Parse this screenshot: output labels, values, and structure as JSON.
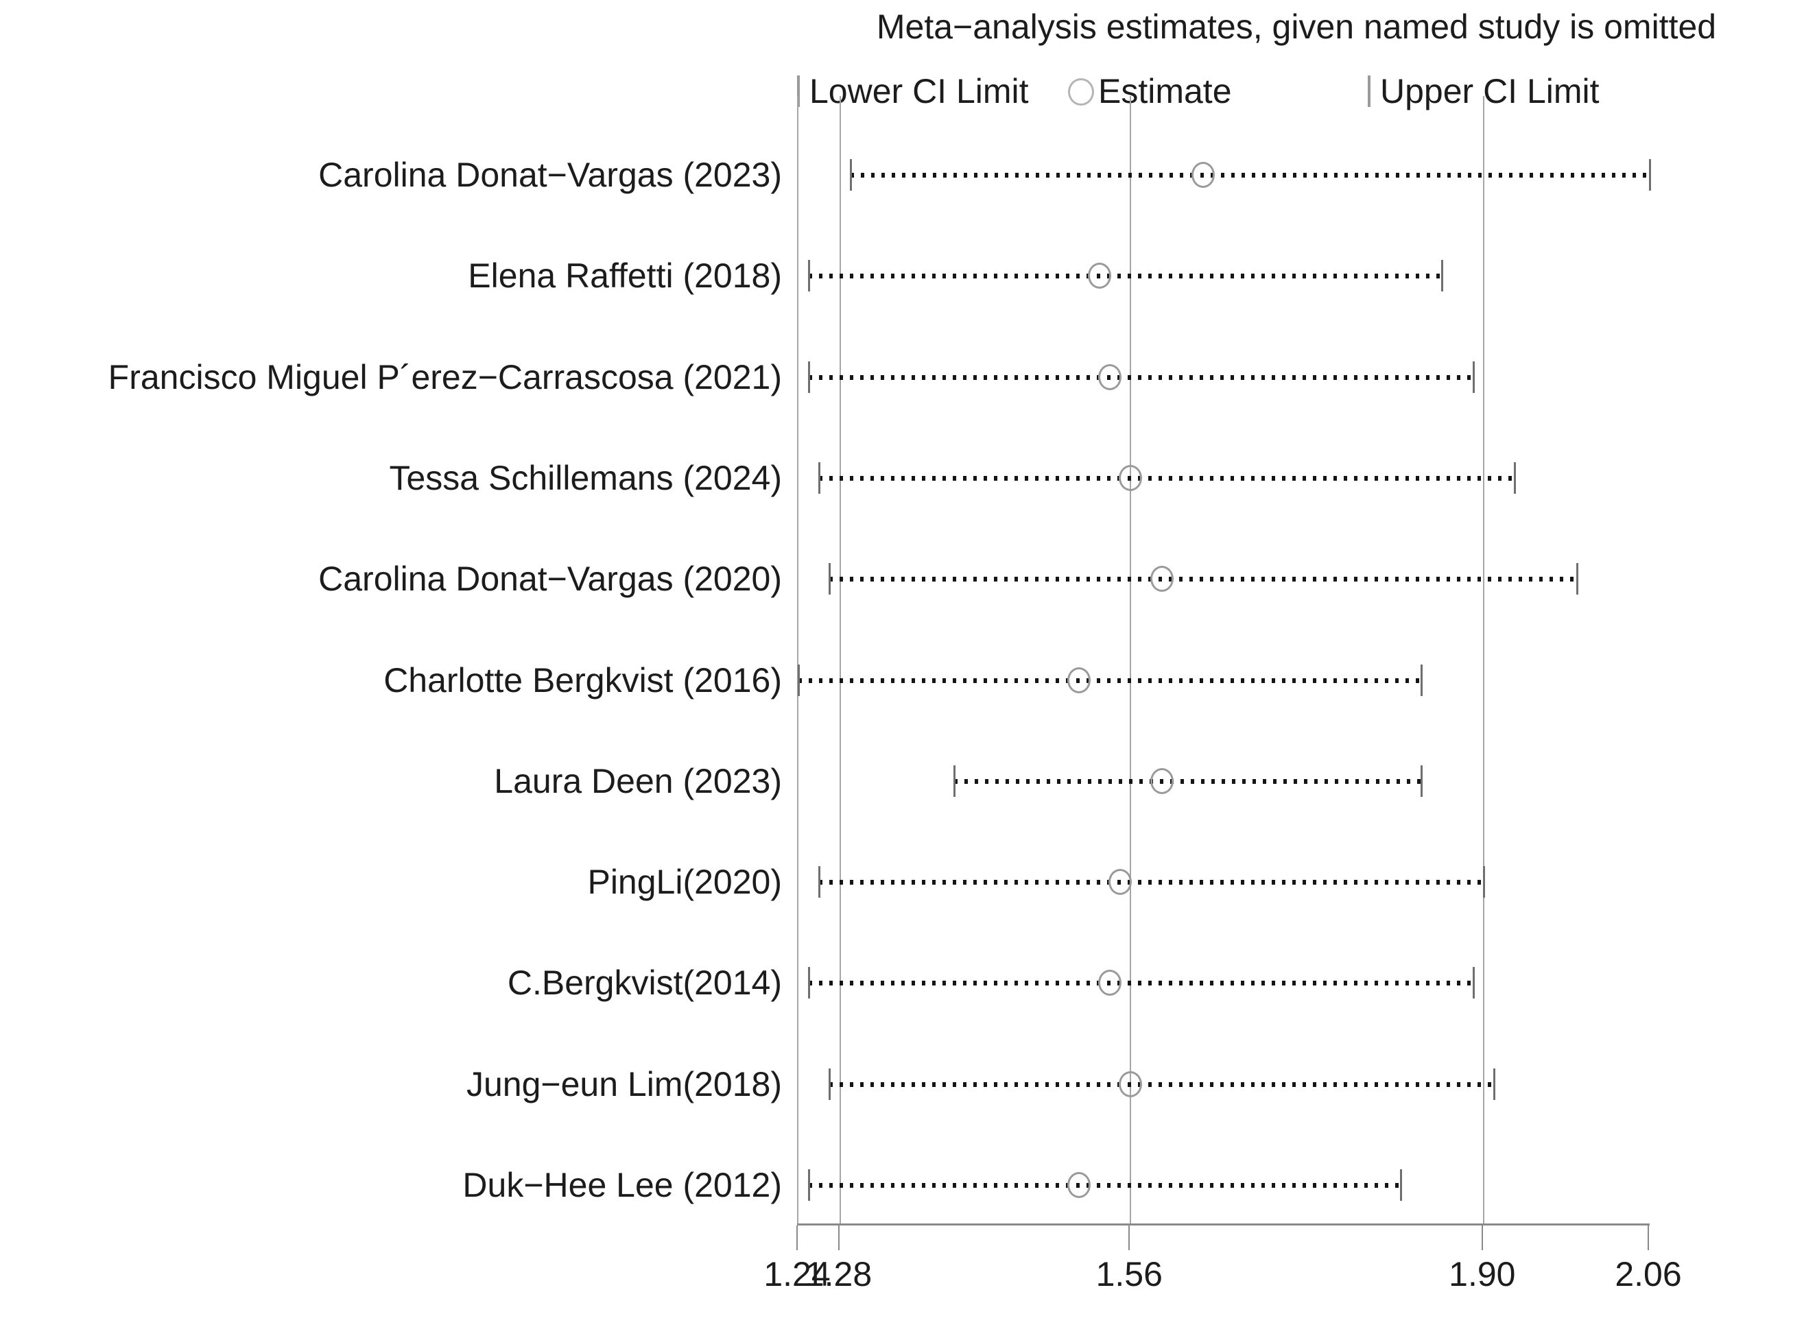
{
  "title": "Meta−analysis estimates, given named study is omitted",
  "legend": {
    "lower_label": "Lower CI Limit",
    "estimate_label": "Estimate",
    "upper_label": "Upper CI Limit"
  },
  "colors": {
    "background": "#ffffff",
    "text": "#1c1c1c",
    "dots": "#141414",
    "caps": "#6f6f6f",
    "estimate_circle": "#9a9a9a",
    "gridlines": "#a6a6a6",
    "axis": "#8a8a8a"
  },
  "chart_data": {
    "type": "scatter",
    "variant": "leave-one-out meta-analysis (forest / metaninf) plot with dotted CI lines",
    "title": "Meta−analysis estimates, given named study is omitted",
    "xlabel": "",
    "ylabel": "",
    "xlim": [
      1.24,
      2.06
    ],
    "x_ticks": [
      1.24,
      1.28,
      1.56,
      1.9,
      2.06
    ],
    "x_tick_labels": [
      "1.24",
      "1.28",
      "1.56",
      "1.90",
      "2.06"
    ],
    "grid": "vertical reference lines only",
    "legend_position": "top",
    "legend_entries": [
      "Lower CI Limit",
      "Estimate",
      "Upper CI Limit"
    ],
    "reference_lines": {
      "lower_ci": 1.28,
      "estimate": 1.56,
      "upper_ci": 1.9
    },
    "studies": [
      {
        "label": "Carolina Donat−Vargas (2023)",
        "lower": 1.29,
        "estimate": 1.63,
        "upper": 2.06
      },
      {
        "label": "Elena Raffetti (2018)",
        "lower": 1.25,
        "estimate": 1.53,
        "upper": 1.86
      },
      {
        "label": "Francisco Miguel P´erez−Carrascosa (2021)",
        "lower": 1.25,
        "estimate": 1.54,
        "upper": 1.89
      },
      {
        "label": "Tessa Schillemans (2024)",
        "lower": 1.26,
        "estimate": 1.56,
        "upper": 1.93
      },
      {
        "label": "Carolina Donat−Vargas (2020)",
        "lower": 1.27,
        "estimate": 1.59,
        "upper": 1.99
      },
      {
        "label": "Charlotte Bergkvist (2016)",
        "lower": 1.24,
        "estimate": 1.51,
        "upper": 1.84
      },
      {
        "label": "Laura Deen (2023)",
        "lower": 1.39,
        "estimate": 1.59,
        "upper": 1.84
      },
      {
        "label": "PingLi(2020)",
        "lower": 1.26,
        "estimate": 1.55,
        "upper": 1.9
      },
      {
        "label": "C.Bergkvist(2014)",
        "lower": 1.25,
        "estimate": 1.54,
        "upper": 1.89
      },
      {
        "label": "Jung−eun Lim(2018)",
        "lower": 1.27,
        "estimate": 1.56,
        "upper": 1.91
      },
      {
        "label": "Duk−Hee Lee (2012)",
        "lower": 1.25,
        "estimate": 1.51,
        "upper": 1.82
      }
    ]
  }
}
